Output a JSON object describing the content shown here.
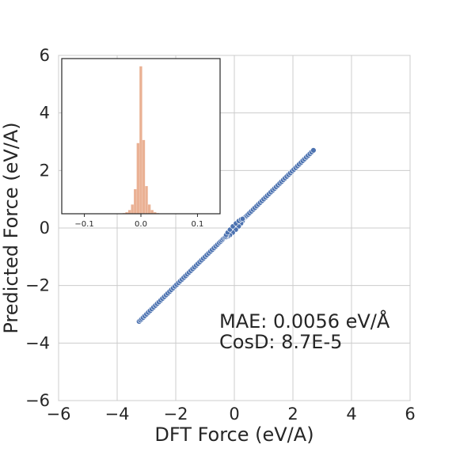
{
  "chart_data": [
    {
      "type": "scatter",
      "xlabel": "DFT Force (eV/A)",
      "ylabel": "Predicted Force (eV/A)",
      "xlim": [
        -6,
        6
      ],
      "ylim": [
        -6,
        6
      ],
      "xticks": [
        "−6",
        "−4",
        "−2",
        "0",
        "2",
        "4",
        "6"
      ],
      "yticks": [
        "−6",
        "−4",
        "−2",
        "0",
        "2",
        "4",
        "6"
      ],
      "grid": true,
      "marker_color": "#4c72b0",
      "series": [
        {
          "x": [
            -3.25,
            -3.1,
            -2.9,
            -2.7,
            -2.5,
            -2.3,
            -2.1,
            -1.9,
            -1.7,
            -1.5,
            -1.3,
            -1.1,
            -0.9,
            -0.7,
            -0.5,
            -0.35,
            -0.2,
            -0.1,
            0.0,
            0.1,
            0.2,
            0.35,
            0.5,
            0.7,
            0.9,
            1.1,
            1.3,
            1.5,
            1.7,
            1.9,
            2.1,
            2.3,
            2.5,
            2.7
          ],
          "y": [
            -3.25,
            -3.1,
            -2.9,
            -2.7,
            -2.5,
            -2.3,
            -2.1,
            -1.9,
            -1.7,
            -1.5,
            -1.3,
            -1.1,
            -0.9,
            -0.7,
            -0.5,
            -0.35,
            -0.2,
            -0.1,
            0.0,
            0.1,
            0.2,
            0.35,
            0.5,
            0.7,
            0.9,
            1.1,
            1.3,
            1.5,
            1.7,
            1.9,
            2.1,
            2.3,
            2.5,
            2.7
          ]
        }
      ],
      "annotations": [
        "MAE:   0.0056 eV/Å",
        "CosD:  8.7E-5"
      ]
    },
    {
      "type": "bar",
      "subtype": "histogram",
      "xlim": [
        -0.14,
        0.14
      ],
      "xticks": [
        "−0.1",
        "0.0",
        "0.1"
      ],
      "bar_color": "#e8a988",
      "bin_centers": [
        -0.03,
        -0.025,
        -0.02,
        -0.015,
        -0.01,
        -0.005,
        0.0,
        0.005,
        0.01,
        0.015,
        0.02,
        0.025,
        0.03
      ],
      "values": [
        0.02,
        0.05,
        0.12,
        0.3,
        0.8,
        2.3,
        4.8,
        2.4,
        0.9,
        0.3,
        0.12,
        0.05,
        0.02
      ]
    }
  ]
}
